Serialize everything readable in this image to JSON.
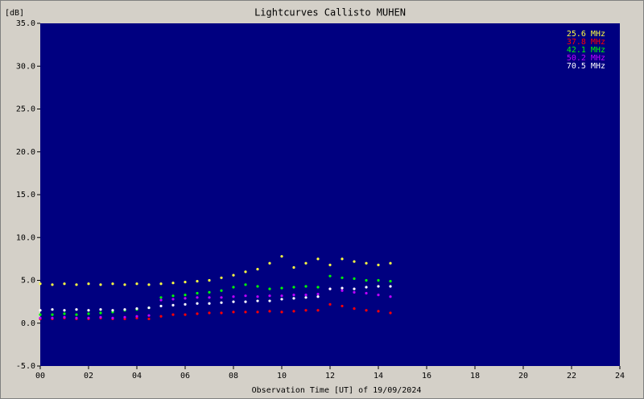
{
  "chart_data": {
    "type": "scatter",
    "title": "Lightcurves Callisto MUHEN",
    "y_label": "[dB]",
    "x_label": "Observation Time [UT] of 19/09/2024",
    "xlim": [
      0,
      24
    ],
    "ylim": [
      -5,
      35
    ],
    "xticks": [
      {
        "value": 0,
        "label": "00"
      },
      {
        "value": 2,
        "label": "02"
      },
      {
        "value": 4,
        "label": "04"
      },
      {
        "value": 6,
        "label": "06"
      },
      {
        "value": 8,
        "label": "08"
      },
      {
        "value": 10,
        "label": "10"
      },
      {
        "value": 12,
        "label": "12"
      },
      {
        "value": 14,
        "label": "14"
      },
      {
        "value": 16,
        "label": "16"
      },
      {
        "value": 18,
        "label": "18"
      },
      {
        "value": 20,
        "label": "20"
      },
      {
        "value": 22,
        "label": "22"
      },
      {
        "value": 24,
        "label": "24"
      }
    ],
    "yticks": [
      {
        "value": -5,
        "label": "-5.0"
      },
      {
        "value": 0,
        "label": "0.0"
      },
      {
        "value": 5,
        "label": "5.0"
      },
      {
        "value": 10,
        "label": "10.0"
      },
      {
        "value": 15,
        "label": "15.0"
      },
      {
        "value": 20,
        "label": "20.0"
      },
      {
        "value": 25,
        "label": "25.0"
      },
      {
        "value": 30,
        "label": "30.0"
      },
      {
        "value": 35,
        "label": "35.0"
      }
    ],
    "legend": "top-right",
    "x": [
      0,
      0.5,
      1,
      1.5,
      2,
      2.5,
      3,
      3.5,
      4,
      4.5,
      5,
      5.5,
      6,
      6.5,
      7,
      7.5,
      8,
      8.5,
      9,
      9.5,
      10,
      10.5,
      11,
      11.5,
      12,
      12.5,
      13,
      13.5,
      14,
      14.5
    ],
    "series": [
      {
        "name": "25.6 MHz",
        "color": "#ffff40",
        "values": [
          4.6,
          4.5,
          4.6,
          4.5,
          4.6,
          4.5,
          4.6,
          4.5,
          4.6,
          4.5,
          4.6,
          4.7,
          4.8,
          4.9,
          5.0,
          5.3,
          5.6,
          6.0,
          6.3,
          7.0,
          7.8,
          6.5,
          7.0,
          7.5,
          6.8,
          7.5,
          7.2,
          7.0,
          6.8,
          7.0
        ]
      },
      {
        "name": "37.8 MHz",
        "color": "#ff0000",
        "values": [
          0.5,
          0.5,
          0.6,
          0.5,
          0.5,
          0.6,
          0.5,
          0.5,
          0.6,
          0.5,
          0.8,
          1.0,
          1.0,
          1.1,
          1.2,
          1.2,
          1.3,
          1.3,
          1.3,
          1.4,
          1.3,
          1.4,
          1.5,
          1.5,
          2.2,
          2.0,
          1.7,
          1.5,
          1.4,
          1.2
        ]
      },
      {
        "name": "42.1 MHz",
        "color": "#00ff00",
        "values": [
          1.0,
          1.0,
          1.1,
          1.0,
          1.1,
          1.2,
          1.3,
          1.5,
          1.6,
          1.8,
          3.0,
          3.2,
          3.3,
          3.5,
          3.6,
          3.8,
          4.2,
          4.5,
          4.3,
          4.0,
          4.1,
          4.2,
          4.3,
          4.2,
          5.5,
          5.3,
          5.2,
          5.0,
          5.0,
          4.9
        ]
      },
      {
        "name": "50.2 MHz",
        "color": "#c000ff",
        "values": [
          0.6,
          0.6,
          0.7,
          0.6,
          0.6,
          0.7,
          0.6,
          0.7,
          0.8,
          0.9,
          2.7,
          2.8,
          2.9,
          3.0,
          3.0,
          3.0,
          3.1,
          3.2,
          3.1,
          3.2,
          3.2,
          3.3,
          3.3,
          3.4,
          4.0,
          3.8,
          3.6,
          3.5,
          3.3,
          3.1
        ]
      },
      {
        "name": "70.5 MHz",
        "color": "#ffffff",
        "values": [
          1.5,
          1.6,
          1.5,
          1.6,
          1.5,
          1.6,
          1.5,
          1.6,
          1.7,
          1.8,
          2.0,
          2.1,
          2.2,
          2.3,
          2.3,
          2.4,
          2.5,
          2.5,
          2.6,
          2.6,
          2.8,
          2.9,
          3.0,
          3.1,
          4.0,
          4.1,
          4.0,
          4.2,
          4.3,
          4.3
        ]
      }
    ]
  }
}
